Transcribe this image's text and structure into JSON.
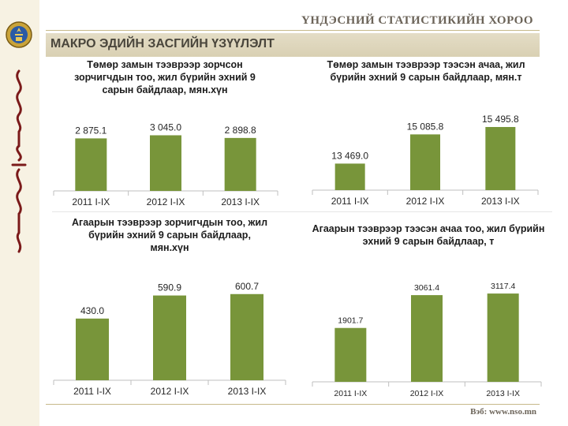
{
  "header": {
    "organization": "ҮНДЭСНИЙ СТАТИСТИКИЙН ХОРОО",
    "section_title": "МАКРО ЭДИЙН ЗАСГИЙН ҮЗҮҮЛЭЛТ"
  },
  "footer": {
    "website": "Вэб: www.nso.mn"
  },
  "colors": {
    "bar": "#78953a",
    "accent_bg": "#d9d0b3",
    "text": "#1c1c1c"
  },
  "chart_data": [
    {
      "type": "bar",
      "title": "Төмөр замын тээврээр зорчсон зорчигчдын тоо, жил бүрийн эхний 9 сарын байдлаар, мян.хүн",
      "categories": [
        "2011 I-IX",
        "2012 I-IX",
        "2013 I-IX"
      ],
      "values": [
        2875.1,
        3045.0,
        2898.8
      ],
      "labels": [
        "2 875.1",
        "3 045.0",
        "2 898.8"
      ],
      "ylim": [
        0,
        3800
      ]
    },
    {
      "type": "bar",
      "title": "Төмөр замын тээврээр тээсэн ачаа, жил бүрийн эхний 9 сарын байдлаар, мян.т",
      "categories": [
        "2011 I-IX",
        "2012 I-IX",
        "2013 I-IX"
      ],
      "values": [
        13469.0,
        15085.8,
        15495.8
      ],
      "labels": [
        "13 469.0",
        "15 085.8",
        "15 495.8"
      ],
      "ylim": [
        12000,
        16500
      ]
    },
    {
      "type": "bar",
      "title": "Агаарын тээврээр зорчигчдын тоо, жил бүрийн эхний 9 сарын байдлаар, мян.хүн",
      "categories": [
        "2011 I-IX",
        "2012 I-IX",
        "2013 I-IX"
      ],
      "values": [
        430.0,
        590.9,
        600.7
      ],
      "labels": [
        "430.0",
        "590.9",
        "600.7"
      ],
      "ylim": [
        0,
        770
      ]
    },
    {
      "type": "bar",
      "title": "Агаарын тээврээр тээсэн ачаа тоо, жил бүрийн эхний 9 сарын байдлаар, т",
      "categories": [
        "2011 I-IX",
        "2012 I-IX",
        "2013 I-IX"
      ],
      "values": [
        1901.7,
        3061.4,
        3117.4
      ],
      "labels": [
        "1901.7",
        "3061.4",
        "3117.4"
      ],
      "ylim": [
        0,
        3900
      ]
    }
  ]
}
